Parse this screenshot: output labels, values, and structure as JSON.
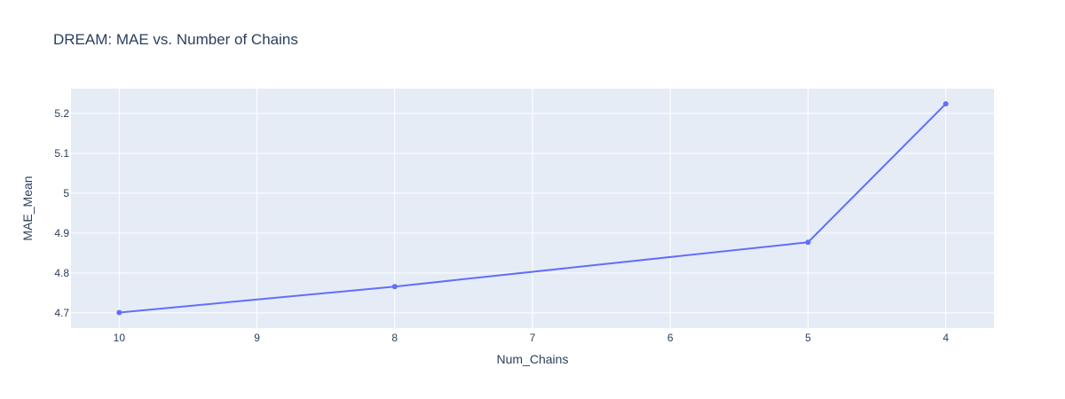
{
  "chart_data": {
    "type": "line",
    "title": "DREAM: MAE vs. Number of Chains",
    "xlabel": "Num_Chains",
    "ylabel": "MAE_Mean",
    "x": [
      10,
      8,
      5,
      4
    ],
    "series": [
      {
        "values": [
          4.701,
          4.766,
          4.877,
          5.224
        ],
        "color": "#636efa",
        "mode": "lines+markers"
      }
    ],
    "x_reversed": true,
    "xlim": [
      10.35,
      3.65
    ],
    "ylim": [
      4.662,
      5.262
    ],
    "x_ticks": [
      "10",
      "9",
      "8",
      "7",
      "6",
      "5",
      "4"
    ],
    "y_ticks": [
      "4.7",
      "4.8",
      "4.9",
      "5",
      "5.1",
      "5.2"
    ],
    "grid": true,
    "plot_background": "#e5ecf6",
    "grid_color": "#ffffff",
    "text_color": "#2a3f5f",
    "legend": "none"
  }
}
